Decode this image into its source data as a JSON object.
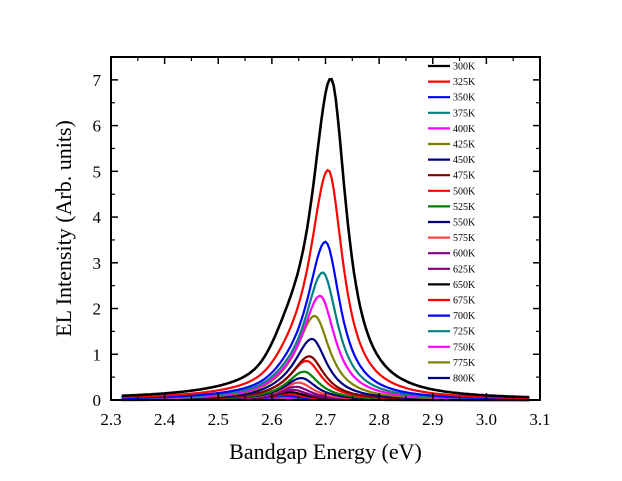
{
  "chart_data": {
    "type": "line",
    "xlabel": "Bandgap Energy (eV)",
    "ylabel": "EL Intensity (Arb. units)",
    "xlim": [
      2.3,
      3.1
    ],
    "ylim": [
      0,
      7.5
    ],
    "x_ticks": [
      "2.3",
      "2.4",
      "2.5",
      "2.6",
      "2.7",
      "2.8",
      "2.9",
      "3.0",
      "3.1"
    ],
    "y_ticks": [
      "0",
      "1",
      "2",
      "3",
      "4",
      "5",
      "6",
      "7"
    ],
    "grid": false,
    "legend_position": "top-right",
    "series": [
      {
        "name": "300K",
        "color": "#000000",
        "peak_x": 2.71,
        "peak_y": 7.02,
        "wl": 0.045,
        "wr": 0.035,
        "sh_amp": 0.42,
        "sh_x": 2.63
      },
      {
        "name": "325K",
        "color": "#ff0000",
        "peak_x": 2.705,
        "peak_y": 5.02,
        "wl": 0.043,
        "wr": 0.034,
        "sh_amp": 0.22,
        "sh_x": 2.635
      },
      {
        "name": "350K",
        "color": "#0000ff",
        "peak_x": 2.7,
        "peak_y": 3.45,
        "wl": 0.043,
        "wr": 0.034,
        "sh_amp": 0.13,
        "sh_x": 2.635
      },
      {
        "name": "375K",
        "color": "#008080",
        "peak_x": 2.695,
        "peak_y": 2.78,
        "wl": 0.042,
        "wr": 0.034,
        "sh_amp": 0.1,
        "sh_x": 2.63
      },
      {
        "name": "400K",
        "color": "#ff00ff",
        "peak_x": 2.69,
        "peak_y": 2.27,
        "wl": 0.042,
        "wr": 0.034,
        "sh_amp": 0.08,
        "sh_x": 2.63
      },
      {
        "name": "425K",
        "color": "#808000",
        "peak_x": 2.68,
        "peak_y": 1.83,
        "wl": 0.041,
        "wr": 0.034,
        "sh_amp": 0.06,
        "sh_x": 2.625
      },
      {
        "name": "450K",
        "color": "#000080",
        "peak_x": 2.675,
        "peak_y": 1.33,
        "wl": 0.041,
        "wr": 0.034,
        "sh_amp": 0.04,
        "sh_x": 2.62
      },
      {
        "name": "475K",
        "color": "#800000",
        "peak_x": 2.67,
        "peak_y": 0.95,
        "wl": 0.04,
        "wr": 0.034,
        "sh_amp": 0.03,
        "sh_x": 2.62
      },
      {
        "name": "500K",
        "color": "#ff0000",
        "peak_x": 2.665,
        "peak_y": 0.85,
        "wl": 0.04,
        "wr": 0.034,
        "sh_amp": 0.02,
        "sh_x": 2.615
      },
      {
        "name": "525K",
        "color": "#008000",
        "peak_x": 2.66,
        "peak_y": 0.62,
        "wl": 0.04,
        "wr": 0.034,
        "sh_amp": 0.0,
        "sh_x": 2.61
      },
      {
        "name": "550K",
        "color": "#000080",
        "peak_x": 2.655,
        "peak_y": 0.48,
        "wl": 0.04,
        "wr": 0.034,
        "sh_amp": 0.0,
        "sh_x": 2.61
      },
      {
        "name": "575K",
        "color": "#ff4040",
        "peak_x": 2.65,
        "peak_y": 0.38,
        "wl": 0.04,
        "wr": 0.034,
        "sh_amp": 0.0,
        "sh_x": 2.6
      },
      {
        "name": "600K",
        "color": "#800080",
        "peak_x": 2.645,
        "peak_y": 0.29,
        "wl": 0.04,
        "wr": 0.034,
        "sh_amp": 0.0,
        "sh_x": 2.6
      },
      {
        "name": "625K",
        "color": "#800080",
        "peak_x": 2.64,
        "peak_y": 0.22,
        "wl": 0.04,
        "wr": 0.034,
        "sh_amp": 0.0,
        "sh_x": 2.6
      },
      {
        "name": "650K",
        "color": "#000000",
        "peak_x": 2.635,
        "peak_y": 0.17,
        "wl": 0.04,
        "wr": 0.034,
        "sh_amp": 0.0,
        "sh_x": 2.6
      },
      {
        "name": "675K",
        "color": "#ff0000",
        "peak_x": 2.63,
        "peak_y": 0.13,
        "wl": 0.04,
        "wr": 0.034,
        "sh_amp": 0.0,
        "sh_x": 2.6
      },
      {
        "name": "700K",
        "color": "#0000ff",
        "peak_x": 2.625,
        "peak_y": 0.1,
        "wl": 0.04,
        "wr": 0.034,
        "sh_amp": 0.0,
        "sh_x": 2.6
      },
      {
        "name": "725K",
        "color": "#008080",
        "peak_x": 2.62,
        "peak_y": 0.08,
        "wl": 0.04,
        "wr": 0.034,
        "sh_amp": 0.0,
        "sh_x": 2.6
      },
      {
        "name": "750K",
        "color": "#ff00ff",
        "peak_x": 2.615,
        "peak_y": 0.06,
        "wl": 0.04,
        "wr": 0.034,
        "sh_amp": 0.0,
        "sh_x": 2.6
      },
      {
        "name": "775K",
        "color": "#808000",
        "peak_x": 2.61,
        "peak_y": 0.05,
        "wl": 0.04,
        "wr": 0.034,
        "sh_amp": 0.0,
        "sh_x": 2.6
      },
      {
        "name": "800K",
        "color": "#000080",
        "peak_x": 2.605,
        "peak_y": 0.04,
        "wl": 0.04,
        "wr": 0.034,
        "sh_amp": 0.0,
        "sh_x": 2.6
      }
    ]
  }
}
